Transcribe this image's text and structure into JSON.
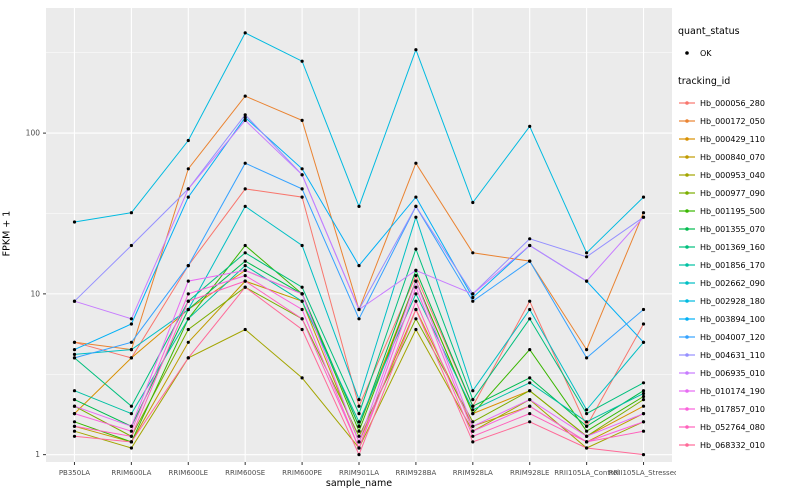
{
  "figure": {
    "background": "#ffffff",
    "panel_background": "#ebebeb",
    "grid_color": "#ffffff",
    "tick_text_color": "#4d4d4d",
    "point_color": "#000000"
  },
  "axes": {
    "x_title": "sample_name",
    "y_title": "FPKM + 1",
    "y_tick_labels": [
      "1",
      "10",
      "100"
    ]
  },
  "legend": {
    "quant_status_title": "quant_status",
    "quant_status_items": [
      {
        "label": "OK",
        "shape": "circle",
        "color": "#000000"
      }
    ],
    "tracking_id_title": "tracking_id"
  },
  "chart_data": {
    "type": "line",
    "title": "",
    "xlabel": "sample_name",
    "ylabel": "FPKM + 1",
    "y_scale": "log10",
    "ylim": [
      0.9,
      600
    ],
    "y_major_ticks": [
      1,
      10,
      100
    ],
    "y_minor_ticks": [
      3.1623,
      31.623,
      316.23
    ],
    "grid": true,
    "legend_position": "right",
    "categories": [
      "PB350LA",
      "RRIM600LA",
      "RRIM600LE",
      "RRIM600SE",
      "RRIM600PE",
      "RRIM901LA",
      "RRIM928BA",
      "RRIM928LA",
      "RRIM928LE",
      "RRII105LA_Control",
      "RRII105LA_Stressed"
    ],
    "series": [
      {
        "name": "Hb_000056_280",
        "color": "#F8766D",
        "values": [
          5.0,
          4.0,
          15,
          45,
          40,
          2.0,
          13,
          2.0,
          9.0,
          1.5,
          6.5
        ]
      },
      {
        "name": "Hb_000172_050",
        "color": "#EA8331",
        "values": [
          5.0,
          4.5,
          60,
          170,
          120,
          8.0,
          65,
          18,
          16,
          4.5,
          32
        ]
      },
      {
        "name": "Hb_000429_110",
        "color": "#D89000",
        "values": [
          1.8,
          4.0,
          8.0,
          14,
          10,
          1.5,
          12,
          1.8,
          2.5,
          1.3,
          2.0
        ]
      },
      {
        "name": "Hb_000840_070",
        "color": "#C09B00",
        "values": [
          1.5,
          1.2,
          5.0,
          12,
          9.0,
          1.2,
          8.0,
          1.5,
          2.0,
          1.2,
          1.8
        ]
      },
      {
        "name": "Hb_000953_040",
        "color": "#A3A500",
        "values": [
          1.4,
          1.1,
          4.0,
          6.0,
          3.0,
          1.1,
          6.0,
          1.4,
          2.2,
          1.1,
          1.6
        ]
      },
      {
        "name": "Hb_000977_090",
        "color": "#7CAE00",
        "values": [
          2.0,
          1.3,
          6.0,
          11,
          7.0,
          1.3,
          7.0,
          1.6,
          2.5,
          1.3,
          2.2
        ]
      },
      {
        "name": "Hb_001195_500",
        "color": "#39B600",
        "values": [
          1.6,
          1.2,
          7.0,
          20,
          10,
          1.4,
          12,
          1.8,
          4.5,
          1.4,
          2.3
        ]
      },
      {
        "name": "Hb_001355_070",
        "color": "#00BB4E",
        "values": [
          2.2,
          1.5,
          8.0,
          16,
          10,
          1.5,
          14,
          2.0,
          3.0,
          1.5,
          2.5
        ]
      },
      {
        "name": "Hb_001369_160",
        "color": "#00BF7D",
        "values": [
          4.0,
          2.0,
          9.0,
          18,
          11,
          1.8,
          19,
          2.2,
          7.0,
          1.8,
          2.8
        ]
      },
      {
        "name": "Hb_001856_170",
        "color": "#00C1A3",
        "values": [
          2.5,
          1.8,
          7.0,
          15,
          9.0,
          1.6,
          10,
          1.9,
          2.8,
          1.6,
          2.4
        ]
      },
      {
        "name": "Hb_002662_090",
        "color": "#00BFC4",
        "values": [
          4.2,
          4.5,
          8.0,
          35,
          20,
          2.2,
          30,
          2.5,
          8.0,
          1.9,
          5.0
        ]
      },
      {
        "name": "Hb_002928_180",
        "color": "#00BAE0",
        "values": [
          28,
          32,
          90,
          420,
          280,
          35,
          330,
          37,
          110,
          18,
          40
        ]
      },
      {
        "name": "Hb_003894_100",
        "color": "#00B0F6",
        "values": [
          4.5,
          6.5,
          40,
          125,
          60,
          15,
          40,
          9.5,
          20,
          12,
          5.0
        ]
      },
      {
        "name": "Hb_004007_120",
        "color": "#35A2FF",
        "values": [
          4.0,
          5.0,
          15,
          65,
          45,
          7.0,
          35,
          9.0,
          16,
          4.0,
          8.0
        ]
      },
      {
        "name": "Hb_004631_110",
        "color": "#9590FF",
        "values": [
          9.0,
          20,
          45,
          130,
          55,
          8.0,
          35,
          10,
          22,
          17,
          30
        ]
      },
      {
        "name": "Hb_006935_010",
        "color": "#C77CFF",
        "values": [
          9.0,
          7.0,
          45,
          120,
          55,
          8.0,
          14,
          10,
          20,
          12,
          30
        ]
      },
      {
        "name": "Hb_010174_190",
        "color": "#E76BF3",
        "values": [
          2.0,
          1.5,
          12,
          14,
          10,
          1.2,
          12,
          1.5,
          2.2,
          1.3,
          1.8
        ]
      },
      {
        "name": "Hb_017857_010",
        "color": "#FA62DB",
        "values": [
          1.8,
          1.4,
          10,
          13,
          8.0,
          1.1,
          11,
          1.4,
          2.0,
          1.2,
          1.6
        ]
      },
      {
        "name": "Hb_052764_080",
        "color": "#FF62BC",
        "values": [
          1.5,
          1.3,
          9.0,
          12,
          7.0,
          1.1,
          9.0,
          1.3,
          1.8,
          1.2,
          1.4
        ]
      },
      {
        "name": "Hb_068332_010",
        "color": "#FF6A98",
        "values": [
          1.3,
          1.2,
          4.0,
          11,
          6.0,
          1.0,
          8.0,
          1.2,
          1.6,
          1.1,
          1.0
        ]
      }
    ]
  }
}
